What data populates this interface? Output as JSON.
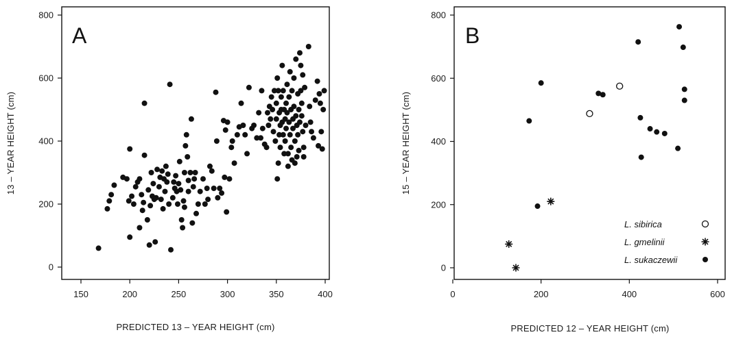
{
  "chart_data": [
    {
      "type": "scatter",
      "panel_label": "A",
      "xlabel": "PREDICTED 13 – YEAR HEIGHT  (cm)",
      "ylabel": "13 – YEAR HEIGHT  (cm)",
      "xlim": [
        150,
        400
      ],
      "ylim": [
        0,
        800
      ],
      "xticks": [
        "150",
        "200",
        "250",
        "300",
        "350",
        "400"
      ],
      "yticks": [
        "0",
        "200",
        "400",
        "600",
        "800"
      ],
      "grid": false,
      "legend": "none",
      "marker_color": "#111111",
      "series": [
        {
          "marker": "filled-circle",
          "points": [
            [
              168,
              60
            ],
            [
              177,
              185
            ],
            [
              179,
              210
            ],
            [
              181,
              230
            ],
            [
              184,
              260
            ],
            [
              193,
              285
            ],
            [
              197,
              280
            ],
            [
              199,
              210
            ],
            [
              200,
              95
            ],
            [
              200,
              375
            ],
            [
              202,
              225
            ],
            [
              204,
              200
            ],
            [
              206,
              255
            ],
            [
              208,
              270
            ],
            [
              210,
              125
            ],
            [
              210,
              280
            ],
            [
              212,
              230
            ],
            [
              213,
              180
            ],
            [
              214,
              205
            ],
            [
              215,
              355
            ],
            [
              215,
              520
            ],
            [
              218,
              150
            ],
            [
              219,
              245
            ],
            [
              220,
              70
            ],
            [
              221,
              195
            ],
            [
              222,
              300
            ],
            [
              223,
              225
            ],
            [
              224,
              265
            ],
            [
              225,
              215
            ],
            [
              226,
              80
            ],
            [
              227,
              220
            ],
            [
              228,
              310
            ],
            [
              230,
              255
            ],
            [
              231,
              285
            ],
            [
              232,
              215
            ],
            [
              233,
              305
            ],
            [
              234,
              185
            ],
            [
              235,
              280
            ],
            [
              236,
              240
            ],
            [
              237,
              320
            ],
            [
              238,
              270
            ],
            [
              239,
              295
            ],
            [
              240,
              200
            ],
            [
              241,
              580
            ],
            [
              242,
              55
            ],
            [
              244,
              220
            ],
            [
              245,
              270
            ],
            [
              246,
              250
            ],
            [
              247,
              290
            ],
            [
              248,
              240
            ],
            [
              249,
              200
            ],
            [
              250,
              265
            ],
            [
              251,
              335
            ],
            [
              252,
              245
            ],
            [
              253,
              150
            ],
            [
              254,
              125
            ],
            [
              255,
              210
            ],
            [
              256,
              190
            ],
            [
              256,
              300
            ],
            [
              257,
              385
            ],
            [
              258,
              420
            ],
            [
              259,
              350
            ],
            [
              260,
              275
            ],
            [
              260,
              240
            ],
            [
              262,
              300
            ],
            [
              263,
              470
            ],
            [
              264,
              140
            ],
            [
              265,
              255
            ],
            [
              266,
              280
            ],
            [
              267,
              300
            ],
            [
              268,
              170
            ],
            [
              270,
              200
            ],
            [
              272,
              240
            ],
            [
              275,
              280
            ],
            [
              277,
              200
            ],
            [
              279,
              250
            ],
            [
              280,
              215
            ],
            [
              282,
              320
            ],
            [
              284,
              305
            ],
            [
              286,
              250
            ],
            [
              288,
              555
            ],
            [
              289,
              400
            ],
            [
              290,
              220
            ],
            [
              292,
              250
            ],
            [
              294,
              235
            ],
            [
              296,
              465
            ],
            [
              297,
              285
            ],
            [
              298,
              435
            ],
            [
              299,
              175
            ],
            [
              300,
              460
            ],
            [
              302,
              280
            ],
            [
              304,
              380
            ],
            [
              305,
              400
            ],
            [
              307,
              330
            ],
            [
              310,
              420
            ],
            [
              312,
              445
            ],
            [
              314,
              520
            ],
            [
              316,
              450
            ],
            [
              318,
              420
            ],
            [
              320,
              360
            ],
            [
              322,
              570
            ],
            [
              325,
              440
            ],
            [
              327,
              450
            ],
            [
              330,
              410
            ],
            [
              332,
              490
            ],
            [
              334,
              410
            ],
            [
              335,
              560
            ],
            [
              336,
              440
            ],
            [
              338,
              390
            ],
            [
              340,
              380
            ],
            [
              341,
              490
            ],
            [
              342,
              450
            ],
            [
              343,
              510
            ],
            [
              344,
              470
            ],
            [
              345,
              540
            ],
            [
              346,
              500
            ],
            [
              347,
              430
            ],
            [
              348,
              560
            ],
            [
              349,
              400
            ],
            [
              350,
              470
            ],
            [
              350,
              520
            ],
            [
              351,
              280
            ],
            [
              351,
              600
            ],
            [
              352,
              560
            ],
            [
              352,
              330
            ],
            [
              353,
              490
            ],
            [
              353,
              420
            ],
            [
              354,
              450
            ],
            [
              354,
              380
            ],
            [
              355,
              540
            ],
            [
              355,
              500
            ],
            [
              356,
              640
            ],
            [
              356,
              460
            ],
            [
              357,
              420
            ],
            [
              357,
              560
            ],
            [
              358,
              360
            ],
            [
              358,
              500
            ],
            [
              359,
              470
            ],
            [
              359,
              400
            ],
            [
              360,
              520
            ],
            [
              360,
              440
            ],
            [
              361,
              580
            ],
            [
              361,
              490
            ],
            [
              362,
              360
            ],
            [
              362,
              320
            ],
            [
              363,
              540
            ],
            [
              363,
              460
            ],
            [
              364,
              620
            ],
            [
              364,
              420
            ],
            [
              365,
              500
            ],
            [
              365,
              380
            ],
            [
              366,
              560
            ],
            [
              366,
              340
            ],
            [
              367,
              470
            ],
            [
              367,
              440
            ],
            [
              368,
              600
            ],
            [
              368,
              510
            ],
            [
              369,
              400
            ],
            [
              369,
              330
            ],
            [
              370,
              660
            ],
            [
              370,
              480
            ],
            [
              371,
              450
            ],
            [
              371,
              350
            ],
            [
              372,
              550
            ],
            [
              372,
              420
            ],
            [
              373,
              500
            ],
            [
              373,
              370
            ],
            [
              374,
              680
            ],
            [
              374,
              460
            ],
            [
              375,
              640
            ],
            [
              375,
              560
            ],
            [
              376,
              520
            ],
            [
              376,
              480
            ],
            [
              377,
              430
            ],
            [
              377,
              610
            ],
            [
              378,
              380
            ],
            [
              378,
              350
            ],
            [
              379,
              570
            ],
            [
              380,
              450
            ],
            [
              383,
              700
            ],
            [
              384,
              510
            ],
            [
              385,
              460
            ],
            [
              386,
              430
            ],
            [
              388,
              410
            ],
            [
              390,
              530
            ],
            [
              392,
              590
            ],
            [
              393,
              385
            ],
            [
              394,
              550
            ],
            [
              395,
              520
            ],
            [
              396,
              430
            ],
            [
              397,
              375
            ],
            [
              398,
              500
            ],
            [
              399,
              560
            ]
          ]
        }
      ]
    },
    {
      "type": "scatter",
      "panel_label": "B",
      "xlabel": "PREDICTED 12 – YEAR HEIGHT  (cm)",
      "ylabel": "15 – YEAR HEIGHT  (cm)",
      "xlim": [
        0,
        600
      ],
      "ylim": [
        0,
        800
      ],
      "xticks": [
        "0",
        "200",
        "400",
        "600"
      ],
      "yticks": [
        "0",
        "200",
        "400",
        "600",
        "800"
      ],
      "grid": false,
      "legend": "bottom-right",
      "marker_color": "#111111",
      "series": [
        {
          "name": "L. sibirica",
          "marker": "open-circle",
          "points": [
            [
              310,
              488
            ],
            [
              378,
              575
            ]
          ]
        },
        {
          "name": "L. gmelinii",
          "marker": "asterisk",
          "points": [
            [
              127,
              75
            ],
            [
              143,
              0
            ],
            [
              222,
              210
            ]
          ]
        },
        {
          "name": "L. sukaczewii",
          "marker": "filled-circle",
          "points": [
            [
              173,
              465
            ],
            [
              192,
              195
            ],
            [
              200,
              585
            ],
            [
              330,
              552
            ],
            [
              340,
              548
            ],
            [
              420,
              715
            ],
            [
              425,
              475
            ],
            [
              427,
              350
            ],
            [
              447,
              440
            ],
            [
              462,
              430
            ],
            [
              480,
              425
            ],
            [
              510,
              378
            ],
            [
              513,
              763
            ],
            [
              522,
              698
            ],
            [
              525,
              565
            ],
            [
              525,
              530
            ]
          ]
        }
      ]
    }
  ]
}
